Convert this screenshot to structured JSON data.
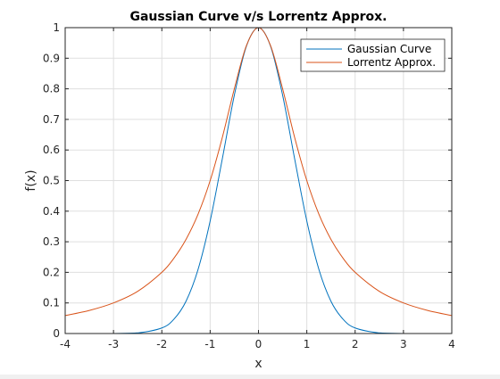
{
  "chart_data": {
    "type": "line",
    "title": "Gaussian Curve v/s Lorrentz Approx.",
    "xlabel": "x",
    "ylabel": "f(x)",
    "xlim": [
      -4,
      4
    ],
    "ylim": [
      0,
      1
    ],
    "xticks": [
      -4,
      -3,
      -2,
      -1,
      0,
      1,
      2,
      3,
      4
    ],
    "xtick_labels": [
      "-4",
      "-3",
      "-2",
      "-1",
      "0",
      "1",
      "2",
      "3",
      "4"
    ],
    "yticks": [
      0,
      0.1,
      0.2,
      0.3,
      0.4,
      0.5,
      0.6,
      0.7,
      0.8,
      0.9,
      1
    ],
    "ytick_labels": [
      "0",
      "0.1",
      "0.2",
      "0.3",
      "0.4",
      "0.5",
      "0.6",
      "0.7",
      "0.8",
      "0.9",
      "1"
    ],
    "grid": true,
    "legend_position": "top-right",
    "x": [
      -4,
      -3.5,
      -3,
      -2.5,
      -2,
      -1.75,
      -1.5,
      -1.25,
      -1,
      -0.75,
      -0.5,
      -0.25,
      0,
      0.25,
      0.5,
      0.75,
      1,
      1.25,
      1.5,
      1.75,
      2,
      2.5,
      3,
      3.5,
      4
    ],
    "series": [
      {
        "name": "Gaussian Curve",
        "color": "#0072BD",
        "values": [
          0,
          0,
          0.0001,
          0.002,
          0.0183,
          0.0468,
          0.1054,
          0.2096,
          0.3679,
          0.5698,
          0.7788,
          0.9394,
          1,
          0.9394,
          0.7788,
          0.5698,
          0.3679,
          0.2096,
          0.1054,
          0.0468,
          0.0183,
          0.002,
          0.0001,
          0,
          0
        ]
      },
      {
        "name": "Lorrentz Approx.",
        "color": "#D95319",
        "values": [
          0.0588,
          0.0755,
          0.1,
          0.1379,
          0.2,
          0.2462,
          0.3077,
          0.3902,
          0.5,
          0.64,
          0.8,
          0.9412,
          1,
          0.9412,
          0.8,
          0.64,
          0.5,
          0.3902,
          0.3077,
          0.2462,
          0.2,
          0.1379,
          0.1,
          0.0755,
          0.0588
        ]
      }
    ]
  }
}
